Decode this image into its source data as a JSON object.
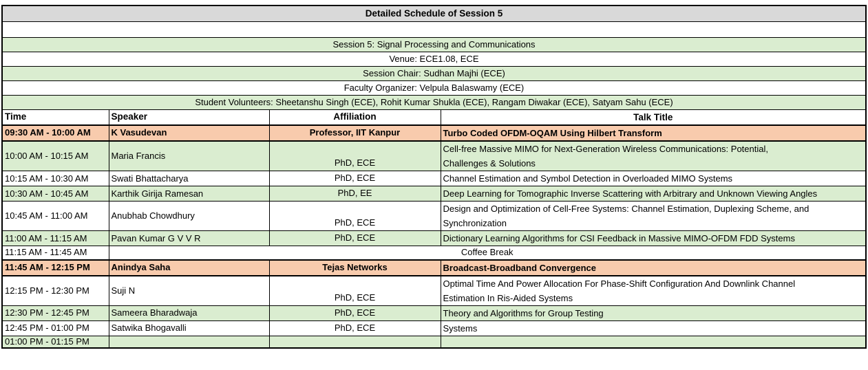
{
  "page_title": "Detailed Schedule of Session 5",
  "session_info": {
    "session": "Session 5: Signal Processing and Communications",
    "venue": "Venue: ECE1.08, ECE",
    "chair": "Session Chair: Sudhan Majhi (ECE)",
    "organizer": "Faculty Organizer: Velpula Balaswamy (ECE)",
    "volunteers": "Student Volunteers: Sheetanshu Singh (ECE), Rohit Kumar Shukla (ECE), Rangam Diwakar (ECE), Satyam Sahu (ECE)"
  },
  "table": {
    "columns": [
      "Time",
      "Speaker",
      "Affiliation",
      "Talk Title"
    ],
    "rows": [
      {
        "time": "09:30 AM - 10:00 AM",
        "speaker": "K Vasudevan",
        "affiliation": "Professor, IIT Kanpur",
        "title": "Turbo Coded OFDM-OQAM Using Hilbert Transform",
        "highlight": "orange",
        "bold": true
      },
      {
        "time": "10:00 AM - 10:15 AM",
        "speaker": "Maria Francis",
        "affiliation": "PhD, ECE",
        "title": "Cell-free Massive MIMO for Next-Generation Wireless Communications: Potential,\nChallenges & Solutions",
        "highlight": "green",
        "bold": false
      },
      {
        "time": "10:15 AM - 10:30 AM",
        "speaker": "Swati Bhattacharya",
        "affiliation": "PhD, ECE",
        "title": "Channel Estimation and Symbol Detection in Overloaded MIMO Systems",
        "highlight": "white",
        "bold": false
      },
      {
        "time": "10:30 AM - 10:45 AM",
        "speaker": "Karthik Girija Ramesan",
        "affiliation": "PhD, EE",
        "title": "Deep Learning for Tomographic Inverse Scattering with Arbitrary and Unknown Viewing Angles",
        "highlight": "green",
        "bold": false
      },
      {
        "time": "10:45 AM - 11:00 AM",
        "speaker": "Anubhab Chowdhury",
        "affiliation": "PhD, ECE",
        "title": "Design and Optimization of Cell-Free Systems: Channel Estimation, Duplexing Scheme, and\nSynchronization",
        "highlight": "white",
        "bold": false
      },
      {
        "time": "11:00 AM - 11:15 AM",
        "speaker": "Pavan Kumar G V V R",
        "affiliation": "PhD, ECE",
        "title": "Dictionary Learning Algorithms for CSI Feedback in Massive MIMO-OFDM FDD Systems",
        "highlight": "green",
        "bold": false
      },
      {
        "time": "11:15 AM - 11:45 AM",
        "merged_label": "Coffee Break",
        "highlight": "white",
        "bold": false
      },
      {
        "time": "11:45 AM - 12:15 PM",
        "speaker": "Anindya Saha",
        "affiliation": "Tejas Networks",
        "title": "Broadcast-Broadband Convergence",
        "highlight": "orange",
        "bold": true
      },
      {
        "time": "12:15 PM - 12:30 PM",
        "speaker": "Suji N",
        "affiliation": "PhD, ECE",
        "title": "Optimal Time And Power Allocation For Phase-Shift Configuration And Downlink Channel\nEstimation In Ris-Aided Systems",
        "highlight": "white",
        "bold": false
      },
      {
        "time": "12:30 PM - 12:45 PM",
        "speaker": "Sameera Bharadwaja",
        "affiliation": "PhD, ECE",
        "title": "Theory and Algorithms for Group Testing",
        "highlight": "green",
        "bold": false
      },
      {
        "time": "12:45 PM - 01:00 PM",
        "speaker": "Satwika Bhogavalli",
        "affiliation": "PhD, ECE",
        "title": "Systems",
        "highlight": "white",
        "bold": false
      },
      {
        "time": "01:00 PM - 01:15 PM",
        "speaker": "",
        "affiliation": "",
        "title": "",
        "highlight": "green",
        "bold": false
      }
    ]
  },
  "colors": {
    "title_bg": "#D9D9D9",
    "green_bg": "#DAEDD0",
    "orange_bg": "#F8CBAD",
    "border": "#000000"
  }
}
